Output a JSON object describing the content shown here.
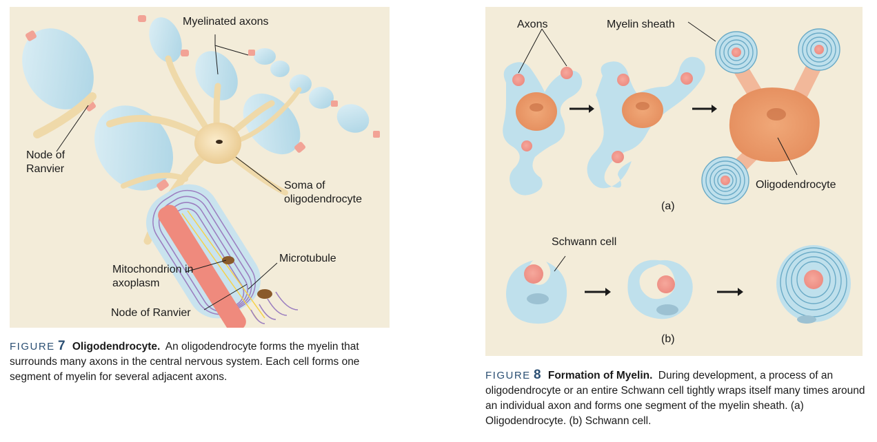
{
  "figure7": {
    "labels": {
      "myelinated_axons": "Myelinated axons",
      "node_of_ranvier_top": "Node of Ranvier",
      "soma": "Soma of oligodendrocyte",
      "mitochondrion": "Mitochondrion in axoplasm",
      "microtubule": "Microtubule",
      "node_of_ranvier_bottom": "Node of Ranvier"
    },
    "caption": {
      "figure_word": "FIGURE",
      "figure_number": "7",
      "title": "Oligodendrocyte.",
      "text": "An oligodendrocyte forms the myelin that surrounds many axons in the central nervous system. Each cell forms one segment of myelin for several adjacent axons."
    }
  },
  "figure8": {
    "labels": {
      "axons": "Axons",
      "myelin_sheath": "Myelin sheath",
      "oligodendrocyte": "Oligodendrocyte",
      "part_a": "(a)",
      "schwann_cell": "Schwann cell",
      "part_b": "(b)"
    },
    "caption": {
      "figure_word": "FIGURE",
      "figure_number": "8",
      "title": "Formation of Myelin.",
      "text": "During development, a process of an oligodendrocyte or an entire Schwann cell tightly wraps itself many times around an individual axon and forms one segment of the myelin sheath. (a) Oligodendrocyte. (b) Schwann cell."
    }
  },
  "colors": {
    "panel_background": "#f3ecd9",
    "myelin": "#bfe0ec",
    "axon": "#f08a80",
    "soma": "#f2d8a6",
    "cell_orange": "#e89a6a",
    "caption_accent": "#2b4f73"
  }
}
